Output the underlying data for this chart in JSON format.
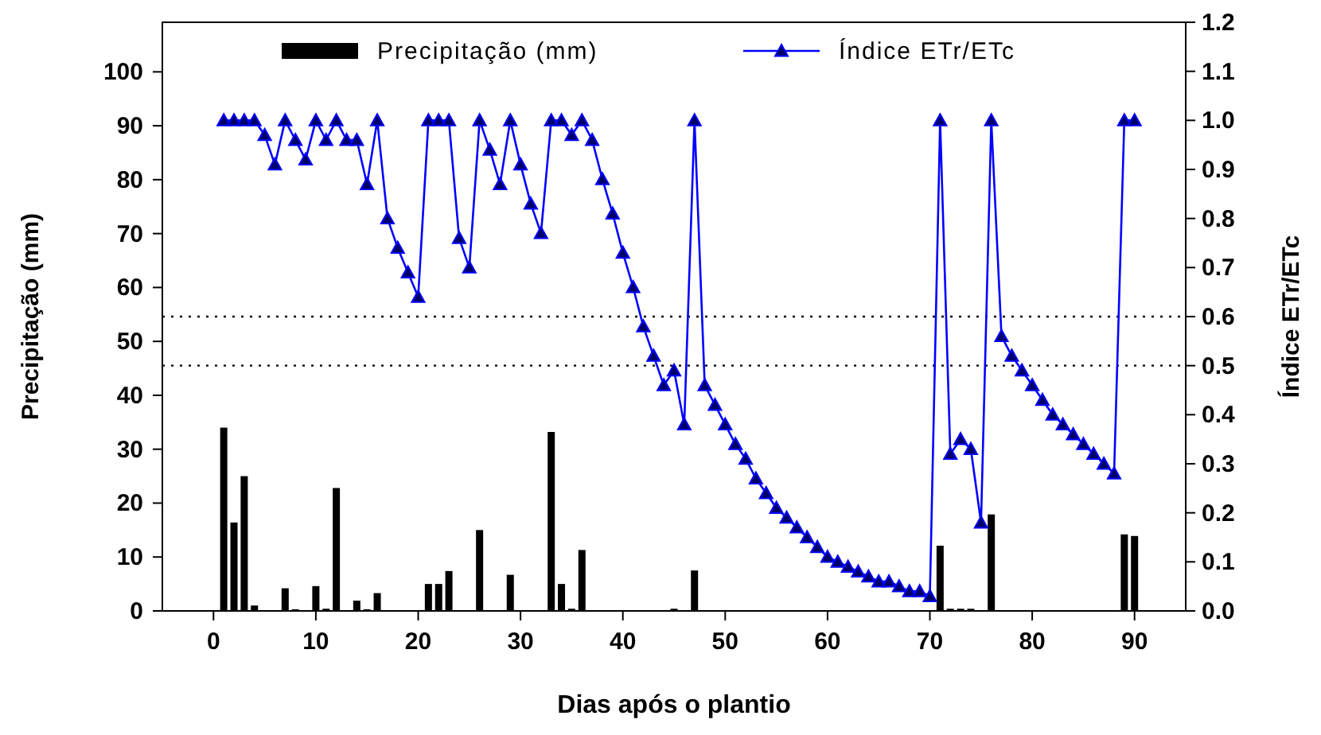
{
  "chart_data": {
    "type": "bar",
    "xlabel": "Dias após o plantio",
    "ylabel": "Precipitação (mm)",
    "y2label": "Índice ETr/ETc",
    "xlim": [
      -5,
      95
    ],
    "xticks": [
      0,
      10,
      20,
      30,
      40,
      50,
      60,
      70,
      80,
      90
    ],
    "ylim": [
      0,
      109.2
    ],
    "yticks": [
      0,
      10,
      20,
      30,
      40,
      50,
      60,
      70,
      80,
      90,
      100
    ],
    "y2lim": [
      0,
      1.2
    ],
    "y2ticks": [
      {
        "value": 0,
        "label": "0.0"
      },
      0.1,
      0.2,
      0.3,
      0.4,
      0.5,
      0.6,
      0.7,
      0.8,
      0.9,
      {
        "value": 1,
        "label": "1.0"
      },
      1.1,
      1.2
    ],
    "legend": "top",
    "grid": false,
    "ref_lines": [
      {
        "axis": "y2",
        "value": 0.6,
        "color": "#000000",
        "line_style": "dotted"
      },
      {
        "axis": "y2",
        "value": 0.5,
        "color": "#000000",
        "line_style": "dotted"
      }
    ],
    "series": [
      {
        "name": "Precipitação (mm)",
        "color": "#000000",
        "x": [
          1,
          2,
          3,
          4,
          7,
          8,
          10,
          11,
          12,
          14,
          15,
          16,
          21,
          22,
          23,
          26,
          29,
          33,
          34,
          35,
          36,
          45,
          47,
          71,
          72,
          73,
          74,
          76,
          89,
          90
        ],
        "values": [
          34.0,
          16.4,
          25.0,
          1.0,
          4.2,
          0.3,
          4.6,
          0.4,
          22.8,
          1.9,
          0.3,
          3.3,
          5.0,
          5.0,
          7.4,
          15.0,
          6.7,
          33.2,
          5.0,
          0.4,
          11.3,
          0.4,
          7.5,
          12.1,
          0.4,
          0.4,
          0.4,
          17.9,
          14.2,
          13.9
        ]
      },
      {
        "name": "Índice ETr/ETc",
        "type": "line",
        "axis": "y2",
        "color": "#0000ff",
        "marker": "triangle",
        "line_style": "solid",
        "x": [
          1,
          2,
          3,
          4,
          5,
          6,
          7,
          8,
          9,
          10,
          11,
          12,
          13,
          14,
          15,
          16,
          17,
          18,
          19,
          20,
          21,
          22,
          23,
          24,
          25,
          26,
          27,
          28,
          29,
          30,
          31,
          32,
          33,
          34,
          35,
          36,
          37,
          38,
          39,
          40,
          41,
          42,
          43,
          44,
          45,
          46,
          47,
          48,
          49,
          50,
          51,
          52,
          53,
          54,
          55,
          56,
          57,
          58,
          59,
          60,
          61,
          62,
          63,
          64,
          65,
          66,
          67,
          68,
          69,
          70,
          71,
          72,
          73,
          74,
          75,
          76,
          77,
          78,
          79,
          80,
          81,
          82,
          83,
          84,
          85,
          86,
          87,
          88,
          89,
          90
        ],
        "values": [
          1.0,
          1.0,
          1.0,
          1.0,
          0.97,
          0.91,
          1.0,
          0.96,
          0.92,
          1.0,
          0.96,
          1.0,
          0.96,
          0.96,
          0.87,
          1.0,
          0.8,
          0.74,
          0.69,
          0.64,
          1.0,
          1.0,
          1.0,
          0.76,
          0.7,
          1.0,
          0.94,
          0.87,
          1.0,
          0.91,
          0.83,
          0.77,
          1.0,
          1.0,
          0.97,
          1.0,
          0.96,
          0.88,
          0.81,
          0.73,
          0.66,
          0.58,
          0.52,
          0.46,
          0.49,
          0.38,
          1.0,
          0.46,
          0.42,
          0.38,
          0.34,
          0.31,
          0.27,
          0.24,
          0.21,
          0.19,
          0.17,
          0.15,
          0.13,
          0.11,
          0.1,
          0.09,
          0.08,
          0.07,
          0.06,
          0.06,
          0.05,
          0.04,
          0.04,
          0.03,
          1.0,
          0.32,
          0.35,
          0.33,
          0.18,
          1.0,
          0.56,
          0.52,
          0.49,
          0.46,
          0.43,
          0.4,
          0.38,
          0.36,
          0.34,
          0.32,
          0.3,
          0.28,
          1.0,
          1.0
        ]
      }
    ]
  }
}
